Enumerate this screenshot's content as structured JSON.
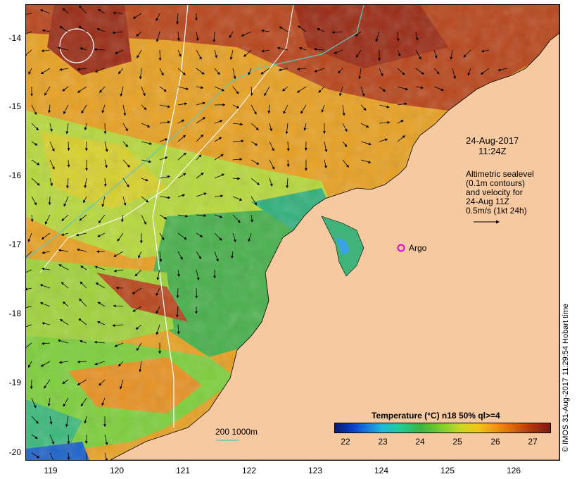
{
  "map": {
    "date": "24-Aug-2017",
    "time": "11:24Z",
    "altimetry_lines": [
      "Altimetric sealevel",
      "(0.1m contours)",
      "and velocity for",
      "24-Aug 11Z",
      "0.5m/s (1kt 24h)"
    ],
    "argo_label": "Argo",
    "argo_color": "#e000e0",
    "depth_legend": "200  1000m",
    "land_color": "#f7c9a0",
    "credit": "© IMOS 31-Aug-2017 11:29:54 Hobart time"
  },
  "axes": {
    "x_ticks": [
      "119",
      "120",
      "121",
      "122",
      "123",
      "124",
      "125",
      "126"
    ],
    "y_ticks": [
      "-14",
      "-15",
      "-16",
      "-17",
      "-18",
      "-19",
      "-20"
    ],
    "xlim": [
      118.63,
      126.7
    ],
    "ylim": [
      -20.07,
      -13.6
    ]
  },
  "colorbar": {
    "title": "Temperature (°C) n18 50% ql>=4",
    "ticks": [
      "22",
      "23",
      "24",
      "25",
      "26",
      "27"
    ],
    "range": [
      21.6,
      27.5
    ]
  }
}
